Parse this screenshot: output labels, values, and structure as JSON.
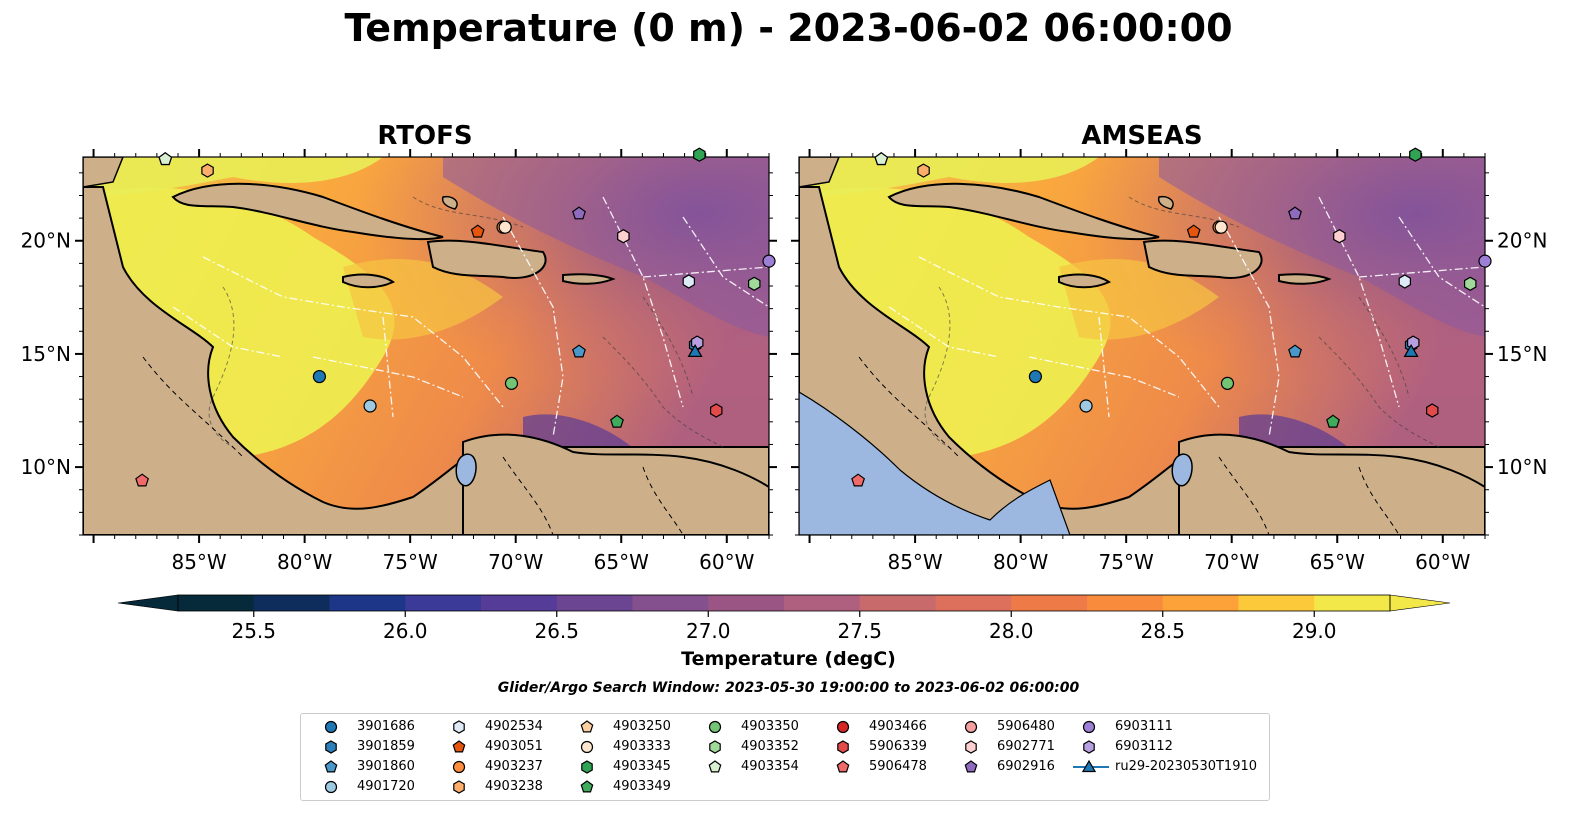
{
  "title": "Temperature (0 m) - 2023-06-02 06:00:00",
  "panels": [
    {
      "title": "RTOFS"
    },
    {
      "title": "AMSEAS"
    }
  ],
  "x_ticks": [
    "85°W",
    "80°W",
    "75°W",
    "70°W",
    "65°W",
    "60°W"
  ],
  "y_ticks": [
    "20°N",
    "15°N",
    "10°N"
  ],
  "colorbar": {
    "label": "Temperature (degC)",
    "ticks": [
      "25.5",
      "26.0",
      "26.5",
      "27.0",
      "27.5",
      "28.0",
      "28.5",
      "29.0"
    ],
    "colors": [
      "#062a3a",
      "#0f2d5c",
      "#1e3687",
      "#3b3a99",
      "#563c99",
      "#6c4592",
      "#84508d",
      "#9a5585",
      "#b0607f",
      "#c86a6b",
      "#dc705c",
      "#ee7a47",
      "#f98c3c",
      "#fca238",
      "#fcc93a",
      "#f3e84a"
    ]
  },
  "search_window": "Glider/Argo Search Window: 2023-05-30 19:00:00 to 2023-06-02 06:00:00",
  "legend": [
    {
      "label": "3901686",
      "marker": "circle",
      "color": "#1f77b4"
    },
    {
      "label": "3901859",
      "marker": "hexagon",
      "color": "#2c7fb8"
    },
    {
      "label": "3901860",
      "marker": "pentagon",
      "color": "#4a98c9"
    },
    {
      "label": "4901720",
      "marker": "circle",
      "color": "#9ecae1"
    },
    {
      "label": "4902534",
      "marker": "hexagon",
      "color": "#deebf7"
    },
    {
      "label": "4903051",
      "marker": "pentagon",
      "color": "#e6550d"
    },
    {
      "label": "4903237",
      "marker": "circle",
      "color": "#fd8d3c"
    },
    {
      "label": "4903238",
      "marker": "hexagon",
      "color": "#fdae6b"
    },
    {
      "label": "4903250",
      "marker": "pentagon",
      "color": "#fdd0a2"
    },
    {
      "label": "4903333",
      "marker": "circle",
      "color": "#fee6ce"
    },
    {
      "label": "4903345",
      "marker": "hexagon",
      "color": "#31a354"
    },
    {
      "label": "4903349",
      "marker": "pentagon",
      "color": "#41ab5d"
    },
    {
      "label": "4903350",
      "marker": "circle",
      "color": "#74c476"
    },
    {
      "label": "4903352",
      "marker": "hexagon",
      "color": "#a1d99b"
    },
    {
      "label": "4903354",
      "marker": "pentagon",
      "color": "#d9f0d3"
    },
    {
      "label": "4903466",
      "marker": "circle",
      "color": "#d62728"
    },
    {
      "label": "5906339",
      "marker": "hexagon",
      "color": "#e34a4a"
    },
    {
      "label": "5906478",
      "marker": "pentagon",
      "color": "#f06a6a"
    },
    {
      "label": "5906480",
      "marker": "circle",
      "color": "#f4a0a0"
    },
    {
      "label": "6902771",
      "marker": "hexagon",
      "color": "#fcd0d0"
    },
    {
      "label": "6902916",
      "marker": "pentagon",
      "color": "#8e6bbf"
    },
    {
      "label": "6903111",
      "marker": "circle",
      "color": "#9e7fd6"
    },
    {
      "label": "6903112",
      "marker": "hexagon",
      "color": "#b79fe0"
    },
    {
      "label": "ru29-20230530T1910",
      "marker": "triangle-line",
      "color": "#1f77b4"
    }
  ],
  "markers": [
    {
      "id": "3901686",
      "lon": -79.3,
      "lat": 14.0
    },
    {
      "id": "3901859",
      "lon": -61.5,
      "lat": 15.4
    },
    {
      "id": "3901860",
      "lon": -67.0,
      "lat": 15.1
    },
    {
      "id": "4901720",
      "lon": -76.9,
      "lat": 12.7
    },
    {
      "id": "4902534",
      "lon": -61.8,
      "lat": 18.2
    },
    {
      "id": "4903051",
      "lon": -71.8,
      "lat": 20.4
    },
    {
      "id": "4903237",
      "lon": -70.6,
      "lat": 20.6
    },
    {
      "id": "4903238",
      "lon": -84.6,
      "lat": 23.1
    },
    {
      "id": "4903250",
      "lon": -86.6,
      "lat": 23.6
    },
    {
      "id": "4903333",
      "lon": -70.5,
      "lat": 20.6
    },
    {
      "id": "4903345",
      "lon": -61.3,
      "lat": 23.8
    },
    {
      "id": "4903349",
      "lon": -65.2,
      "lat": 12.0
    },
    {
      "id": "4903350",
      "lon": -70.2,
      "lat": 13.7
    },
    {
      "id": "4903352",
      "lon": -58.7,
      "lat": 18.1
    },
    {
      "id": "4903354",
      "lon": -86.6,
      "lat": 23.6
    },
    {
      "id": "5906339",
      "lon": -60.5,
      "lat": 12.5
    },
    {
      "id": "5906478",
      "lon": -87.7,
      "lat": 9.4
    },
    {
      "id": "6902771",
      "lon": -64.9,
      "lat": 20.2
    },
    {
      "id": "6902916",
      "lon": -67.0,
      "lat": 21.2
    },
    {
      "id": "6903111",
      "lon": -58.0,
      "lat": 19.1
    },
    {
      "id": "6903112",
      "lon": -61.4,
      "lat": 15.5
    },
    {
      "id": "ru29-20230530T1910",
      "lon": -61.5,
      "lat": 15.1
    }
  ]
}
